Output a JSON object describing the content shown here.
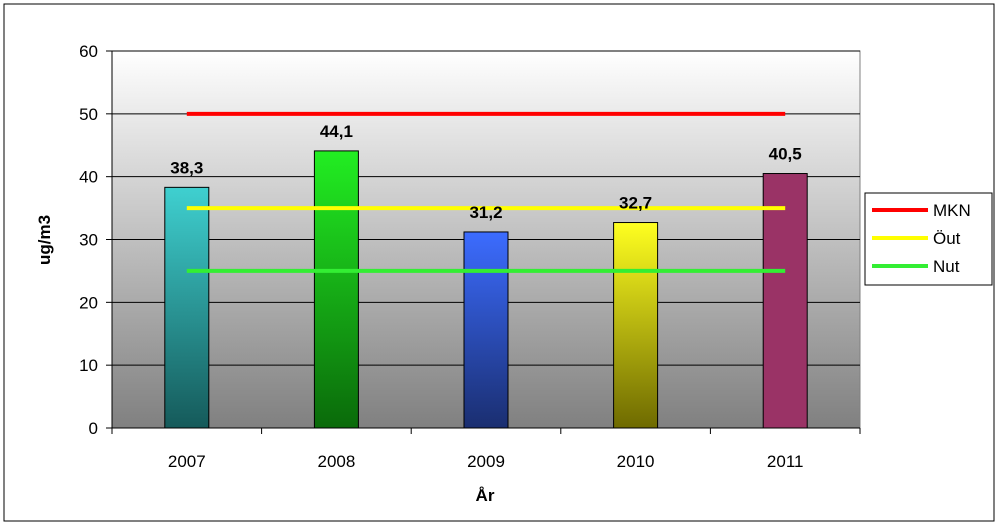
{
  "chart_data": {
    "type": "bar",
    "title": "",
    "xlabel": "År",
    "ylabel": "ug/m3",
    "ylim": [
      0,
      60
    ],
    "yticks": [
      0,
      10,
      20,
      30,
      40,
      50,
      60
    ],
    "grid": true,
    "legend_position": "right",
    "categories": [
      "2007",
      "2008",
      "2009",
      "2010",
      "2011"
    ],
    "values": [
      38.3,
      44.1,
      31.2,
      32.7,
      40.5
    ],
    "value_labels": [
      "38,3",
      "44,1",
      "31,2",
      "32,7",
      "40,5"
    ],
    "bar_colors": [
      [
        "#3fd0d0",
        "#155a5a"
      ],
      [
        "#22ee22",
        "#0a6a0a"
      ],
      [
        "#3c6cff",
        "#1a2e70"
      ],
      [
        "#ffff20",
        "#6e6a00"
      ],
      [
        "#9a3366",
        "#9a3366"
      ]
    ],
    "reference_lines": [
      {
        "name": "MKN",
        "value": 50,
        "color": "#ff0000"
      },
      {
        "name": "Öut",
        "value": 35,
        "color": "#ffff00"
      },
      {
        "name": "Nut",
        "value": 25,
        "color": "#33ee33"
      }
    ],
    "plot_background": [
      "#ffffff",
      "#808080"
    ]
  }
}
